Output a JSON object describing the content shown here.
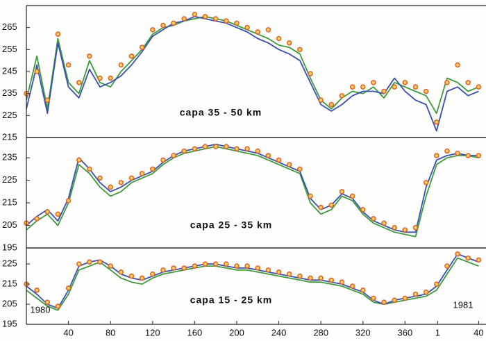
{
  "chart_data": [
    {
      "type": "line",
      "title": "capa 35 - 50 km",
      "x": [
        0,
        10,
        20,
        30,
        40,
        50,
        60,
        70,
        80,
        90,
        100,
        110,
        120,
        130,
        140,
        150,
        160,
        170,
        180,
        190,
        200,
        210,
        220,
        230,
        240,
        250,
        260,
        270,
        280,
        290,
        300,
        310,
        320,
        330,
        340,
        350,
        360,
        370,
        380,
        390,
        400,
        410,
        420,
        430
      ],
      "xlim": [
        0,
        437
      ],
      "ylim": [
        215,
        275
      ],
      "yticks": [
        215,
        225,
        235,
        245,
        255,
        265
      ],
      "series": [
        {
          "color": "#3c9a3c",
          "style": "line",
          "values": [
            232,
            252,
            228,
            260,
            240,
            235,
            250,
            240,
            238,
            245,
            250,
            255,
            262,
            265,
            266,
            268,
            269,
            270,
            269,
            268,
            266,
            264,
            262,
            260,
            257,
            256,
            253,
            242,
            232,
            228,
            233,
            236,
            235,
            238,
            233,
            240,
            238,
            236,
            234,
            226,
            242,
            240,
            236,
            238
          ]
        },
        {
          "color": "#3a4fb0",
          "style": "line",
          "values": [
            228,
            248,
            226,
            258,
            238,
            233,
            246,
            238,
            240,
            243,
            248,
            254,
            261,
            264,
            267,
            268,
            270,
            269,
            268,
            267,
            265,
            263,
            260,
            258,
            255,
            253,
            250,
            240,
            230,
            227,
            230,
            234,
            236,
            236,
            235,
            242,
            236,
            232,
            230,
            218,
            236,
            238,
            234,
            236
          ]
        },
        {
          "color": "#e0602a",
          "style": "markers",
          "values": [
            235,
            245,
            232,
            262,
            248,
            240,
            252,
            242,
            242,
            248,
            252,
            256,
            264,
            266,
            267,
            269,
            271,
            270,
            269,
            268,
            267,
            265,
            263,
            264,
            260,
            258,
            255,
            244,
            232,
            230,
            234,
            238,
            238,
            240,
            236,
            238,
            240,
            238,
            236,
            222,
            240,
            248,
            240,
            238
          ]
        }
      ]
    },
    {
      "type": "line",
      "title": "capa 25 - 35 km",
      "x": [
        0,
        10,
        20,
        30,
        40,
        50,
        60,
        70,
        80,
        90,
        100,
        110,
        120,
        130,
        140,
        150,
        160,
        170,
        180,
        190,
        200,
        210,
        220,
        230,
        240,
        250,
        260,
        270,
        280,
        290,
        300,
        310,
        320,
        330,
        340,
        350,
        360,
        370,
        380,
        390,
        400,
        410,
        420,
        430
      ],
      "xlim": [
        0,
        437
      ],
      "ylim": [
        195,
        244
      ],
      "yticks": [
        195,
        205,
        215,
        225,
        235
      ],
      "series": [
        {
          "color": "#3c9a3c",
          "style": "line",
          "values": [
            203,
            207,
            210,
            205,
            215,
            232,
            228,
            222,
            218,
            220,
            224,
            226,
            228,
            232,
            235,
            237,
            238,
            239,
            240,
            239,
            238,
            237,
            236,
            234,
            232,
            230,
            228,
            215,
            210,
            212,
            218,
            216,
            210,
            206,
            204,
            202,
            201,
            200,
            218,
            232,
            235,
            236,
            236,
            235
          ]
        },
        {
          "color": "#3a4fb0",
          "style": "line",
          "values": [
            205,
            209,
            212,
            207,
            217,
            235,
            230,
            224,
            220,
            222,
            225,
            227,
            229,
            233,
            236,
            238,
            239,
            240,
            241,
            240,
            239,
            238,
            237,
            235,
            233,
            231,
            229,
            217,
            212,
            214,
            219,
            217,
            211,
            207,
            205,
            203,
            202,
            202,
            222,
            234,
            236,
            237,
            236,
            236
          ]
        },
        {
          "color": "#e0602a",
          "style": "markers",
          "values": [
            206,
            208,
            211,
            210,
            216,
            234,
            230,
            226,
            222,
            224,
            226,
            228,
            230,
            234,
            236,
            238,
            239,
            240,
            240,
            240,
            239,
            239,
            238,
            236,
            234,
            232,
            230,
            218,
            213,
            214,
            220,
            218,
            212,
            208,
            206,
            204,
            203,
            204,
            224,
            236,
            238,
            237,
            236,
            236
          ]
        }
      ]
    },
    {
      "type": "line",
      "title": "capa 15 - 25 km",
      "x": [
        0,
        10,
        20,
        30,
        40,
        50,
        60,
        70,
        80,
        90,
        100,
        110,
        120,
        130,
        140,
        150,
        160,
        170,
        180,
        190,
        200,
        210,
        220,
        230,
        240,
        250,
        260,
        270,
        280,
        290,
        300,
        310,
        320,
        330,
        340,
        350,
        360,
        370,
        380,
        390,
        400,
        410,
        420,
        430
      ],
      "xlim": [
        0,
        437
      ],
      "ylim": [
        195,
        233
      ],
      "yticks": [
        195,
        205,
        215,
        225
      ],
      "xticks": [
        40,
        80,
        120,
        160,
        200,
        240,
        280,
        320,
        360,
        {
          "value": 391,
          "label": "1"
        },
        {
          "value": 430,
          "label": "40"
        }
      ],
      "annotations": [
        "1980",
        "1981"
      ],
      "series": [
        {
          "color": "#3c9a3c",
          "style": "line",
          "values": [
            212,
            208,
            204,
            202,
            210,
            222,
            224,
            226,
            222,
            218,
            216,
            215,
            218,
            220,
            221,
            222,
            223,
            224,
            224,
            223,
            222,
            222,
            221,
            220,
            219,
            218,
            217,
            216,
            216,
            215,
            214,
            212,
            210,
            206,
            205,
            206,
            207,
            208,
            209,
            212,
            220,
            228,
            226,
            224
          ]
        },
        {
          "color": "#3a4fb0",
          "style": "line",
          "values": [
            214,
            210,
            205,
            203,
            212,
            224,
            226,
            227,
            224,
            220,
            218,
            217,
            219,
            221,
            222,
            223,
            224,
            225,
            225,
            224,
            223,
            223,
            222,
            221,
            220,
            219,
            218,
            217,
            217,
            216,
            215,
            213,
            211,
            207,
            205,
            207,
            208,
            209,
            210,
            214,
            222,
            230,
            228,
            226
          ]
        },
        {
          "color": "#e0602a",
          "style": "markers",
          "values": [
            215,
            212,
            206,
            204,
            213,
            225,
            226,
            226,
            224,
            221,
            219,
            218,
            220,
            222,
            223,
            223,
            224,
            225,
            225,
            225,
            224,
            224,
            223,
            222,
            221,
            220,
            219,
            218,
            218,
            217,
            216,
            214,
            212,
            208,
            206,
            207,
            208,
            210,
            211,
            215,
            224,
            230,
            228,
            227
          ]
        }
      ]
    }
  ]
}
